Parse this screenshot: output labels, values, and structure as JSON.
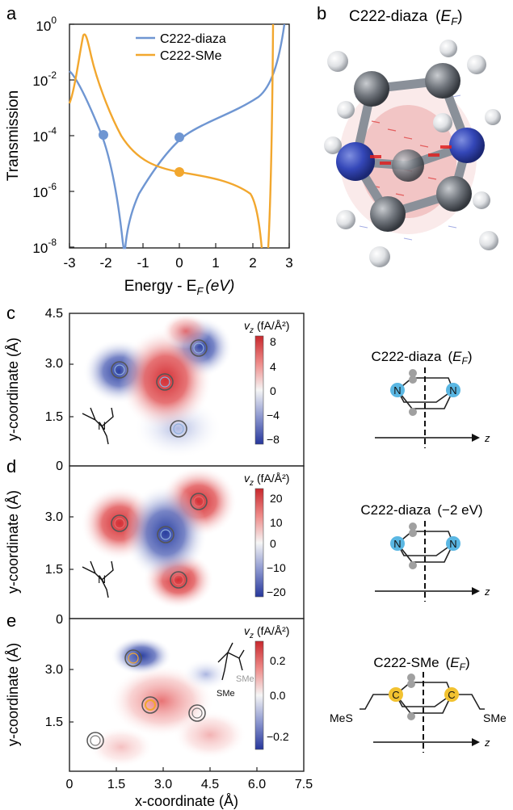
{
  "panel_labels": {
    "a": "a",
    "b": "b",
    "c": "c",
    "d": "d",
    "e": "e"
  },
  "colors": {
    "diaza": "#6f96d2",
    "sme": "#f2a72e",
    "red": "#d8363a",
    "blue": "#2f46a8",
    "axis": "#222222"
  },
  "panel_a": {
    "ylabel": "Transmission",
    "xlabel_main": "Energy - E",
    "xlabel_sub": "F",
    "xlabel_unit": "(eV)",
    "xticks": [
      "-3",
      "-2",
      "-1",
      "0",
      "1",
      "2",
      "3"
    ],
    "yticks": [
      {
        "base": "10",
        "exp": "0"
      },
      {
        "base": "10",
        "exp": "-2"
      },
      {
        "base": "10",
        "exp": "-4"
      },
      {
        "base": "10",
        "exp": "-6"
      },
      {
        "base": "10",
        "exp": "-8"
      }
    ],
    "legend": [
      "C222-diaza",
      "C222-SMe"
    ]
  },
  "panel_b": {
    "title_main": "C222-diaza",
    "title_E": "E",
    "title_F": "F"
  },
  "colorbars": {
    "c": {
      "label_v": "v",
      "label_z": "z",
      "label_unit": "(fA/Å²)",
      "ticks": [
        "8",
        "4",
        "0",
        "−4",
        "−8"
      ]
    },
    "d": {
      "label_v": "v",
      "label_z": "z",
      "label_unit": "(fA/Å²)",
      "ticks": [
        "20",
        "10",
        "0",
        "−10",
        "−20"
      ]
    },
    "e": {
      "label_v": "v",
      "label_z": "z",
      "label_unit": "(fA/Å²)",
      "ticks": [
        "0.2",
        "0.0",
        "−0.2"
      ]
    }
  },
  "maps": {
    "ylabel": "y-coordinate (Å)",
    "xlabel": "x-coordinate (Å)",
    "yticks_c": [
      "4.5",
      "3.0",
      "1.5",
      "0"
    ],
    "yticks_d": [
      "3.0",
      "1.5",
      "0"
    ],
    "yticks_e": [
      "3.0",
      "1.5"
    ],
    "xticks": [
      "0",
      "1.5",
      "3.0",
      "4.5",
      "6.0",
      "7.5"
    ]
  },
  "schematics": {
    "c": {
      "title_main": "C222-diaza",
      "title_E": "E",
      "title_F": "F",
      "atom": "N",
      "axis": "z"
    },
    "d": {
      "title_main": "C222-diaza",
      "title_energy": "(−2 eV)",
      "atom": "N",
      "axis": "z"
    },
    "e": {
      "title_main": "C222-SMe",
      "title_E": "E",
      "title_F": "F",
      "atom": "C",
      "axis": "z",
      "left_group": "MeS",
      "right_group": "SMe"
    }
  },
  "inset_labels": {
    "n": "N",
    "sme": "SMe"
  }
}
